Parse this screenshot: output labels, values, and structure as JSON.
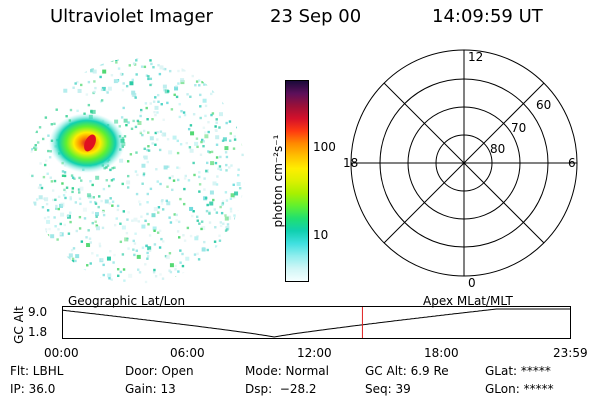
{
  "header": {
    "title": "Ultraviolet Imager",
    "date": "23 Sep 00",
    "time": "14:09:59 UT"
  },
  "colorbar": {
    "label": "photon cm⁻²s⁻¹",
    "ticks": [
      "100",
      "10"
    ],
    "colors": [
      "#1a0a3a",
      "#5c0f5a",
      "#9a1038",
      "#d4102a",
      "#ff3a10",
      "#ff8a00",
      "#ffc000",
      "#ffee00",
      "#dcf000",
      "#a8f000",
      "#60f030",
      "#20e070",
      "#10d0b0",
      "#40e0e0",
      "#90eeee",
      "#d0f6f6",
      "#f4ffff"
    ]
  },
  "polar": {
    "mlt_labels": {
      "top": "12",
      "right": "6",
      "bottom": "0",
      "left": "18"
    },
    "lat_labels": [
      "60",
      "70",
      "80"
    ]
  },
  "altplot": {
    "axis_label": "GC Alt",
    "y_ticks": [
      "9.0",
      "1.8"
    ],
    "left_caption": "Geographic Lat/Lon",
    "right_caption": "Apex MLat/MLT",
    "x_ticks": [
      "00:00",
      "06:00",
      "12:00",
      "18:00",
      "23:59"
    ],
    "marker_hour": 14.17,
    "marker_color": "#e02020"
  },
  "footer": {
    "row1": [
      "Flt: LBHL",
      "Door: Open",
      "Mode: Normal",
      "GC Alt: 6.9 Re",
      "GLat: *****"
    ],
    "row2": [
      "IP: 36.0",
      "Gain: 13",
      "Dsp:  −28.2",
      "Seq: 39",
      "GLon: *****"
    ]
  }
}
